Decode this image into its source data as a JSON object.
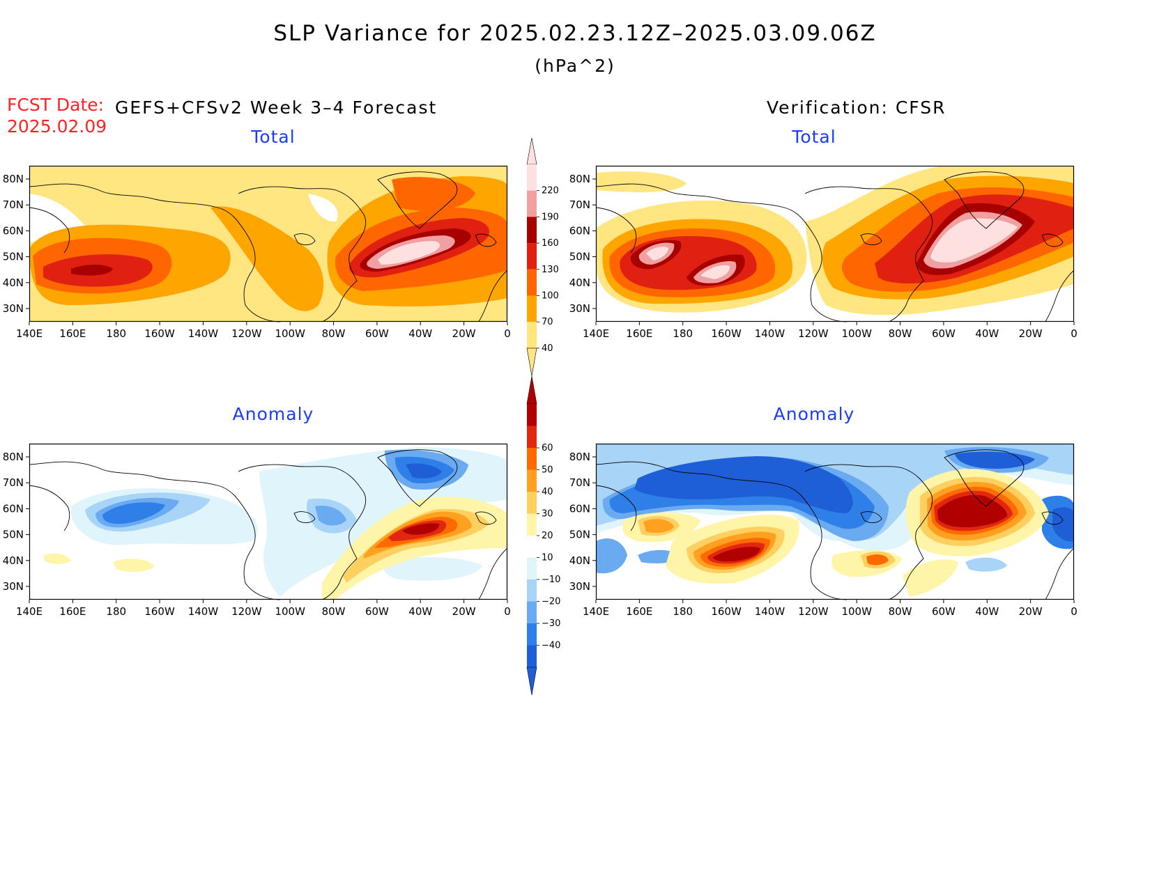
{
  "figure": {
    "title": "SLP Variance for 2025.02.23.12Z–2025.03.09.06Z",
    "units": "(hPa^2)",
    "fcst_label": "FCST Date:",
    "fcst_date": "2025.02.09",
    "left_column": "GEFS+CFSv2 Week 3–4 Forecast",
    "right_column": "Verification: CFSR"
  },
  "axes": {
    "lon_ticks": [
      "140E",
      "160E",
      "180",
      "160W",
      "140W",
      "120W",
      "100W",
      "80W",
      "60W",
      "40W",
      "20W",
      "0"
    ],
    "lat_ticks": [
      "30N",
      "40N",
      "50N",
      "60N",
      "70N",
      "80N"
    ]
  },
  "panels": [
    {
      "id": "fcst-total",
      "title": "Total",
      "kind": "total"
    },
    {
      "id": "verif-total",
      "title": "Total",
      "kind": "total"
    },
    {
      "id": "fcst-anomaly",
      "title": "Anomaly",
      "kind": "anomaly"
    },
    {
      "id": "verif-anomaly",
      "title": "Anomaly",
      "kind": "anomaly"
    }
  ],
  "colorbars": {
    "total": {
      "labels": [
        "40",
        "70",
        "100",
        "130",
        "160",
        "190",
        "220"
      ],
      "colors": [
        "#ffe680",
        "#ffa500",
        "#ff6600",
        "#e02010",
        "#a80000",
        "#f0a0a0",
        "#ffe0e0"
      ]
    },
    "anomaly": {
      "labels": [
        "−40",
        "−30",
        "−20",
        "−10",
        "10",
        "20",
        "30",
        "40",
        "50",
        "60"
      ],
      "colors": [
        "#1e5fd8",
        "#2f7fe8",
        "#6aaaf0",
        "#a8d4f8",
        "#e0f4fc",
        "#ffffff",
        "#fff5a8",
        "#ffd060",
        "#ffa020",
        "#ff6a00",
        "#e02810",
        "#b00000"
      ]
    }
  },
  "map_colors": {
    "total": {
      "c40": "#ffe680",
      "c70": "#ffa500",
      "c100": "#ff6600",
      "c130": "#e02010",
      "c160": "#a80000",
      "c190": "#f0a0a0",
      "c220": "#ffe0e0"
    },
    "anomaly": {
      "n40": "#1e5fd8",
      "n30": "#2f7fe8",
      "n20": "#6aaaf0",
      "n10": "#a8d4f8",
      "n5": "#e0f4fc",
      "p10": "#fff5a8",
      "p20": "#ffd060",
      "p30": "#ffa020",
      "p40": "#ff6a00",
      "p50": "#e02810",
      "p60": "#b00000"
    }
  }
}
